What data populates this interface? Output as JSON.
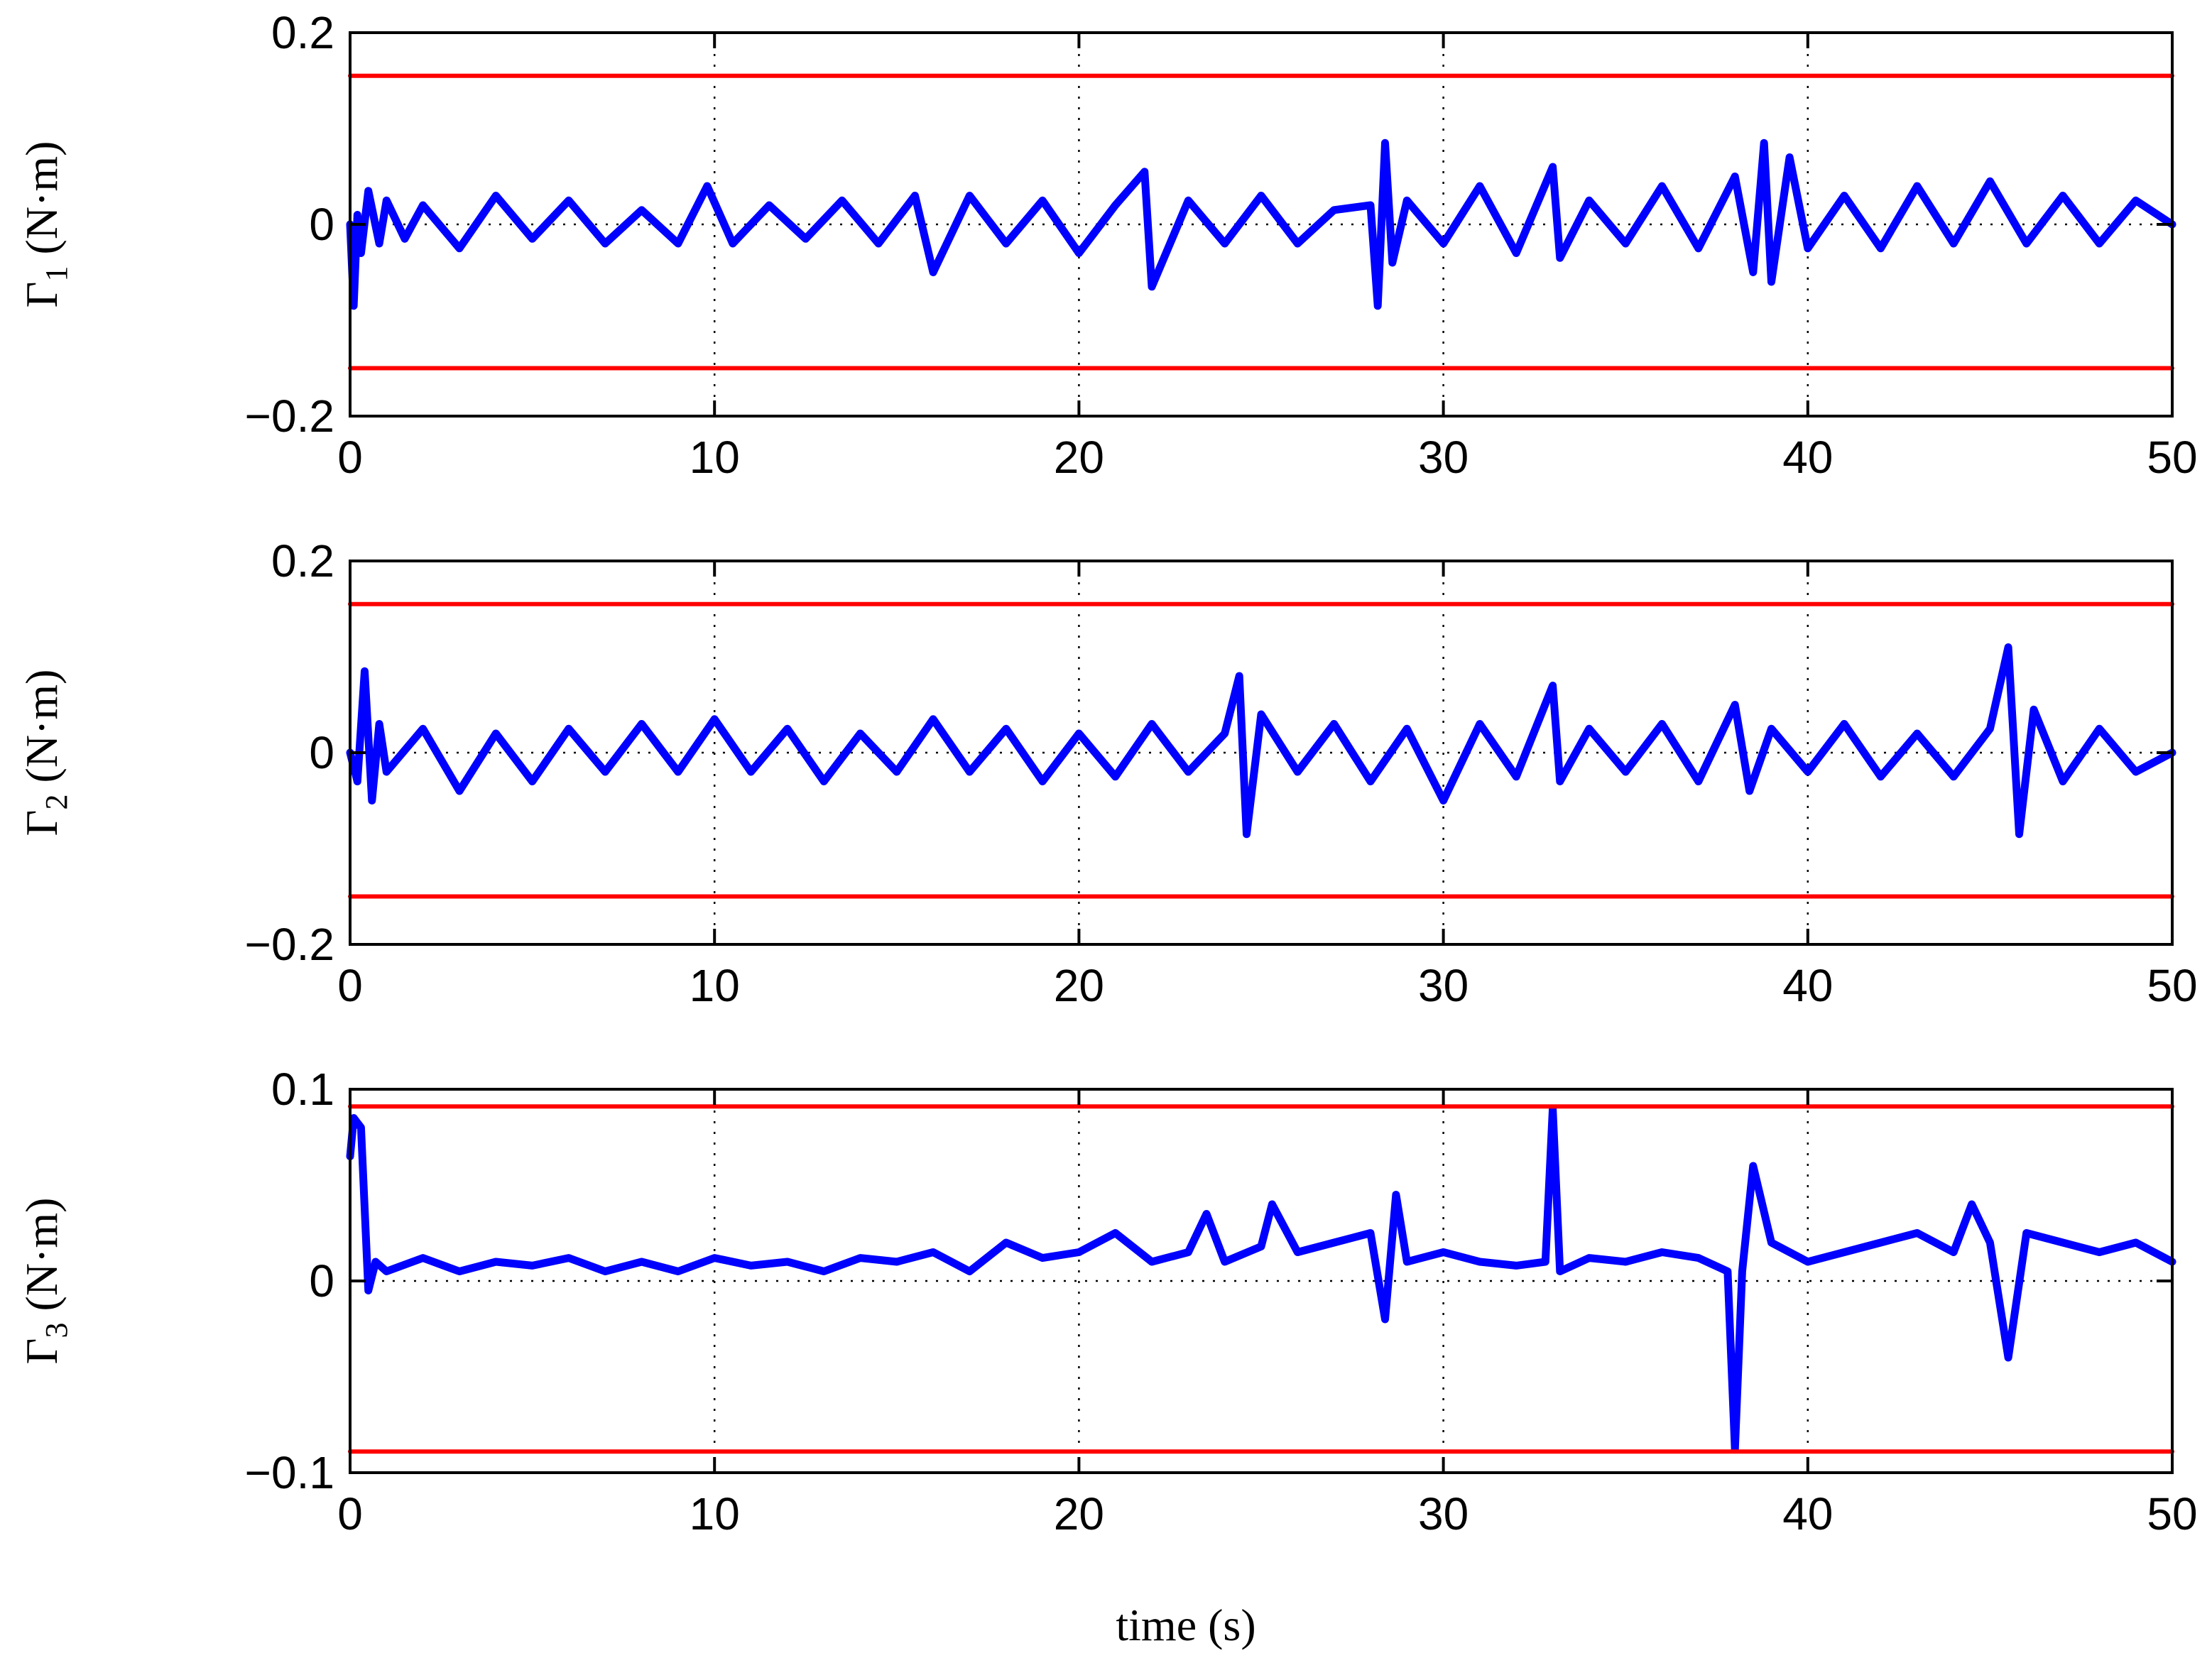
{
  "figure": {
    "xlabel": "time (s)"
  },
  "chart_data": [
    {
      "type": "line",
      "title": "",
      "ylabel_main": "Γ",
      "ylabel_sub": "1",
      "ylabel_unit": "(N·m)",
      "xlim": [
        0,
        50
      ],
      "ylim": [
        -0.2,
        0.2
      ],
      "xticks": [
        0,
        10,
        20,
        30,
        40,
        50
      ],
      "xtick_labels": [
        "0",
        "10",
        "20",
        "30",
        "40",
        "50"
      ],
      "yticks": [
        0.2,
        0,
        -0.2
      ],
      "ytick_labels": [
        "0.2",
        "0",
        "−0.2"
      ],
      "grid": "vertical dotted",
      "series": [
        {
          "color": "#0000ff",
          "x": [
            0,
            0.1,
            0.2,
            0.3,
            0.5,
            0.8,
            1.0,
            1.5,
            2.0,
            3.0,
            4.0,
            5.0,
            6.0,
            7.0,
            8.0,
            9.0,
            9.8,
            10.5,
            11.5,
            12.5,
            13.5,
            14.5,
            15.5,
            16.0,
            17.0,
            18.0,
            19.0,
            20.0,
            21.0,
            21.8,
            22.0,
            23.0,
            24.0,
            25.0,
            26.0,
            27.0,
            28.0,
            28.2,
            28.4,
            28.6,
            29.0,
            30.0,
            31.0,
            32.0,
            33.0,
            33.2,
            34.0,
            35.0,
            36.0,
            37.0,
            38.0,
            38.5,
            38.8,
            39.0,
            39.5,
            40.0,
            41.0,
            42.0,
            43.0,
            44.0,
            45.0,
            46.0,
            47.0,
            48.0,
            49.0,
            50.0
          ],
          "y": [
            0.0,
            -0.085,
            0.01,
            -0.03,
            0.035,
            -0.02,
            0.025,
            -0.015,
            0.02,
            -0.025,
            0.03,
            -0.015,
            0.025,
            -0.02,
            0.015,
            -0.02,
            0.04,
            -0.02,
            0.02,
            -0.015,
            0.025,
            -0.02,
            0.03,
            -0.05,
            0.03,
            -0.02,
            0.025,
            -0.03,
            0.02,
            0.055,
            -0.065,
            0.025,
            -0.02,
            0.03,
            -0.02,
            0.015,
            0.02,
            -0.085,
            0.085,
            -0.04,
            0.025,
            -0.02,
            0.04,
            -0.03,
            0.06,
            -0.035,
            0.025,
            -0.02,
            0.04,
            -0.025,
            0.05,
            -0.05,
            0.085,
            -0.06,
            0.07,
            -0.025,
            0.03,
            -0.025,
            0.04,
            -0.02,
            0.045,
            -0.02,
            0.03,
            -0.02,
            0.025,
            0.0
          ]
        },
        {
          "color": "#ff0000",
          "x": [
            0,
            50
          ],
          "y": [
            0.155,
            0.155
          ]
        },
        {
          "color": "#ff0000",
          "x": [
            0,
            50
          ],
          "y": [
            -0.15,
            -0.15
          ]
        }
      ]
    },
    {
      "type": "line",
      "title": "",
      "ylabel_main": "Γ",
      "ylabel_sub": "2",
      "ylabel_unit": "(N·m)",
      "xlim": [
        0,
        50
      ],
      "ylim": [
        -0.2,
        0.2
      ],
      "xticks": [
        0,
        10,
        20,
        30,
        40,
        50
      ],
      "xtick_labels": [
        "0",
        "10",
        "20",
        "30",
        "40",
        "50"
      ],
      "yticks": [
        0.2,
        0,
        -0.2
      ],
      "ytick_labels": [
        "0.2",
        "0",
        "−0.2"
      ],
      "grid": "vertical dotted",
      "series": [
        {
          "color": "#0000ff",
          "x": [
            0,
            0.2,
            0.4,
            0.6,
            0.8,
            1.0,
            2.0,
            3.0,
            4.0,
            5.0,
            6.0,
            7.0,
            8.0,
            9.0,
            10.0,
            11.0,
            12.0,
            13.0,
            14.0,
            15.0,
            16.0,
            17.0,
            18.0,
            19.0,
            20.0,
            21.0,
            22.0,
            23.0,
            24.0,
            24.4,
            24.6,
            25.0,
            26.0,
            27.0,
            28.0,
            29.0,
            30.0,
            31.0,
            32.0,
            33.0,
            33.2,
            34.0,
            35.0,
            36.0,
            37.0,
            38.0,
            38.4,
            39.0,
            40.0,
            41.0,
            42.0,
            43.0,
            44.0,
            45.0,
            45.5,
            45.8,
            46.2,
            47.0,
            48.0,
            49.0,
            50.0
          ],
          "y": [
            0.0,
            -0.03,
            0.085,
            -0.05,
            0.03,
            -0.02,
            0.025,
            -0.04,
            0.02,
            -0.03,
            0.025,
            -0.02,
            0.03,
            -0.02,
            0.035,
            -0.02,
            0.025,
            -0.03,
            0.02,
            -0.02,
            0.035,
            -0.02,
            0.025,
            -0.03,
            0.02,
            -0.025,
            0.03,
            -0.02,
            0.02,
            0.08,
            -0.085,
            0.04,
            -0.02,
            0.03,
            -0.03,
            0.025,
            -0.05,
            0.03,
            -0.025,
            0.07,
            -0.03,
            0.025,
            -0.02,
            0.03,
            -0.03,
            0.05,
            -0.04,
            0.025,
            -0.02,
            0.03,
            -0.025,
            0.02,
            -0.025,
            0.025,
            0.11,
            -0.085,
            0.045,
            -0.03,
            0.025,
            -0.02,
            0.0
          ]
        },
        {
          "color": "#ff0000",
          "x": [
            0,
            50
          ],
          "y": [
            0.155,
            0.155
          ]
        },
        {
          "color": "#ff0000",
          "x": [
            0,
            50
          ],
          "y": [
            -0.15,
            -0.15
          ]
        }
      ]
    },
    {
      "type": "line",
      "title": "",
      "ylabel_main": "Γ",
      "ylabel_sub": "3",
      "ylabel_unit": "(N·m)",
      "xlim": [
        0,
        50
      ],
      "ylim": [
        -0.1,
        0.1
      ],
      "xticks": [
        0,
        10,
        20,
        30,
        40,
        50
      ],
      "xtick_labels": [
        "0",
        "10",
        "20",
        "30",
        "40",
        "50"
      ],
      "yticks": [
        0.1,
        0,
        -0.1
      ],
      "ytick_labels": [
        "0.1",
        "0",
        "−0.1"
      ],
      "grid": "vertical dotted",
      "series": [
        {
          "color": "#0000ff",
          "x": [
            0,
            0.1,
            0.3,
            0.5,
            0.7,
            1.0,
            2.0,
            3.0,
            4.0,
            5.0,
            6.0,
            7.0,
            8.0,
            9.0,
            10.0,
            11.0,
            12.0,
            13.0,
            14.0,
            15.0,
            16.0,
            17.0,
            18.0,
            19.0,
            20.0,
            21.0,
            22.0,
            23.0,
            23.5,
            24.0,
            25.0,
            25.3,
            26.0,
            27.0,
            28.0,
            28.4,
            28.7,
            29.0,
            30.0,
            31.0,
            32.0,
            32.8,
            33.0,
            33.2,
            34.0,
            35.0,
            36.0,
            37.0,
            37.8,
            38.0,
            38.2,
            38.5,
            39.0,
            40.0,
            41.0,
            42.0,
            43.0,
            44.0,
            44.5,
            45.0,
            45.5,
            46.0,
            47.0,
            48.0,
            49.0,
            50.0
          ],
          "y": [
            0.065,
            0.085,
            0.08,
            -0.005,
            0.01,
            0.005,
            0.012,
            0.005,
            0.01,
            0.008,
            0.012,
            0.005,
            0.01,
            0.005,
            0.012,
            0.008,
            0.01,
            0.005,
            0.012,
            0.01,
            0.015,
            0.005,
            0.02,
            0.012,
            0.015,
            0.025,
            0.01,
            0.015,
            0.035,
            0.01,
            0.018,
            0.04,
            0.015,
            0.02,
            0.025,
            -0.02,
            0.045,
            0.01,
            0.015,
            0.01,
            0.008,
            0.01,
            0.09,
            0.005,
            0.012,
            0.01,
            0.015,
            0.012,
            0.005,
            -0.088,
            0.005,
            0.06,
            0.02,
            0.01,
            0.015,
            0.02,
            0.025,
            0.015,
            0.04,
            0.02,
            -0.04,
            0.025,
            0.02,
            0.015,
            0.02,
            0.01
          ]
        },
        {
          "color": "#ff0000",
          "x": [
            0,
            50
          ],
          "y": [
            0.091,
            0.091
          ]
        },
        {
          "color": "#ff0000",
          "x": [
            0,
            50
          ],
          "y": [
            -0.089,
            -0.089
          ]
        }
      ]
    }
  ]
}
